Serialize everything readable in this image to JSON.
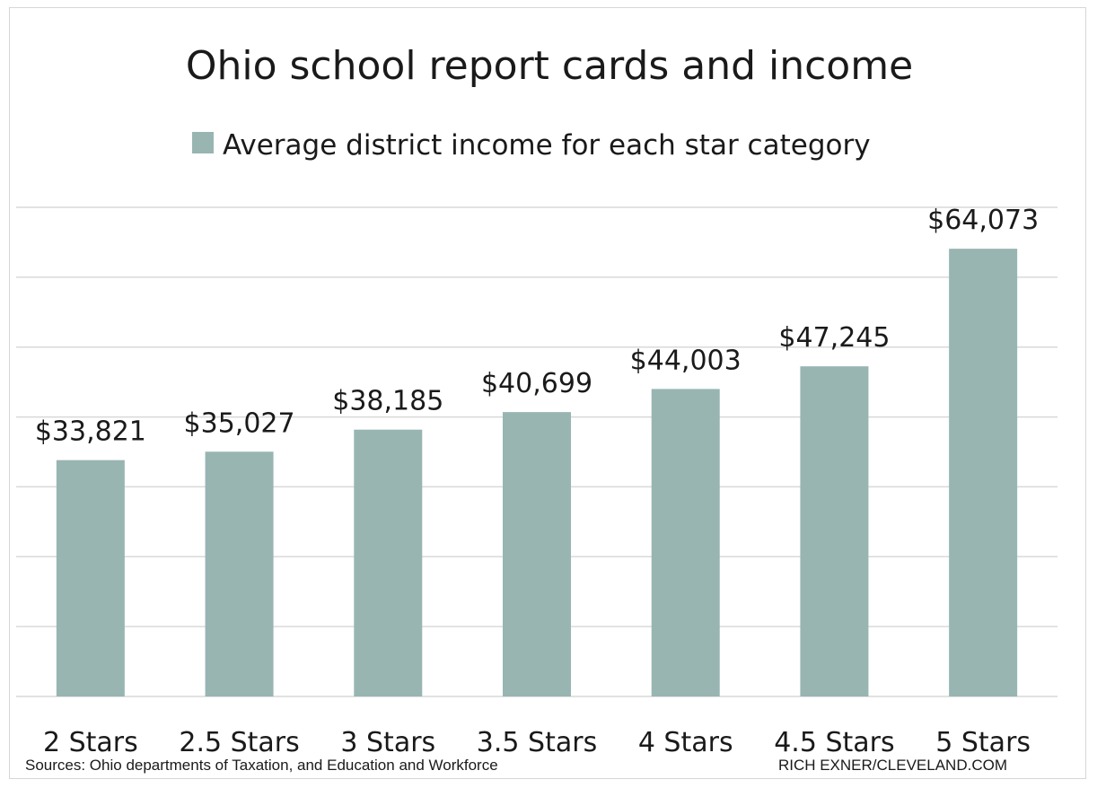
{
  "chart_data": {
    "type": "bar",
    "title": "Ohio school report cards and income",
    "legend": {
      "label": "Average district income for each star category",
      "placement": "top"
    },
    "categories": [
      "2 Stars",
      "2.5 Stars",
      "3 Stars",
      "3.5 Stars",
      "4 Stars",
      "4.5 Stars",
      "5 Stars"
    ],
    "series": [
      {
        "name": "Average district income for each star category",
        "values": [
          33821,
          35027,
          38185,
          40699,
          44003,
          47245,
          64073
        ],
        "color": "#98b5b2"
      }
    ],
    "data_labels": [
      "$33,821",
      "$35,027",
      "$38,185",
      "$40,699",
      "$44,003",
      "$47,245",
      "$64,073"
    ],
    "xlabel": "",
    "ylabel": "",
    "ylim": [
      0,
      70000
    ],
    "y_gridline_step": 10000,
    "grid": true,
    "y_tick_labels_shown": false
  },
  "footer": {
    "source": "Sources: Ohio departments of Taxation, and Education and Workforce",
    "credit": "RICH EXNER/CLEVELAND.COM"
  }
}
